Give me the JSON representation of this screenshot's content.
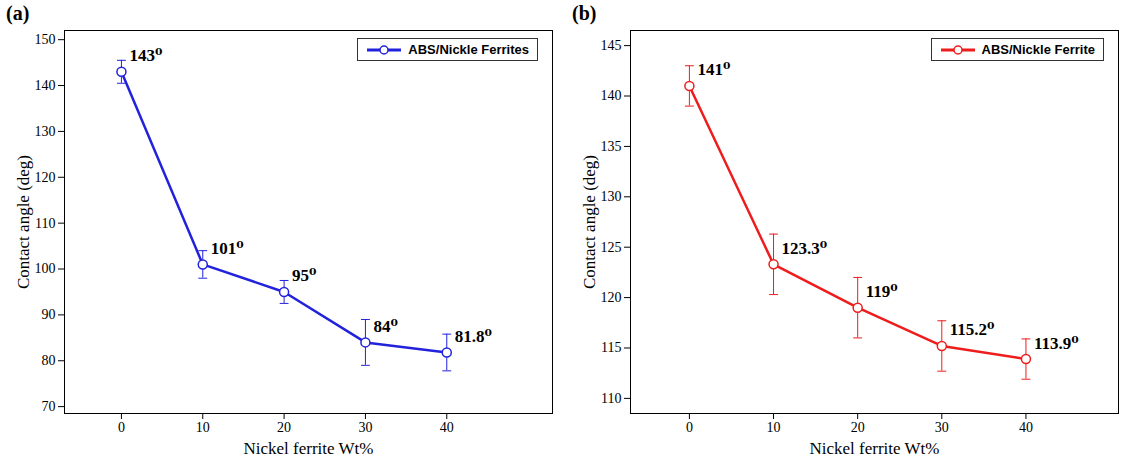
{
  "chart_data": [
    {
      "type": "line",
      "panel": "(a)",
      "x": [
        0,
        10,
        20,
        30,
        40
      ],
      "series": [
        {
          "name": "ABS/Nickle Ferrites",
          "color": "#2222dd",
          "marker": "circle",
          "values": [
            143,
            101,
            95,
            84,
            81.8
          ],
          "errors": [
            2.5,
            3,
            2.5,
            5,
            4
          ],
          "value_labels": [
            "143⁰",
            "101⁰",
            "95⁰",
            "84⁰",
            "81.8⁰"
          ]
        }
      ],
      "x_label": "Nickel ferrite Wt%",
      "y_label": "Contact angle (deg)",
      "xlim": [
        -7,
        53
      ],
      "xticks": [
        0,
        10,
        20,
        30,
        40
      ],
      "ylim": [
        68.5,
        152
      ],
      "yticks": [
        70,
        80,
        90,
        100,
        110,
        120,
        130,
        140,
        150
      ],
      "legend": "top-right",
      "data_labels": true
    },
    {
      "type": "line",
      "panel": "(b)",
      "x": [
        0,
        10,
        20,
        30,
        40
      ],
      "series": [
        {
          "name": "ABS/Nickle Ferrite",
          "color": "#ee1c1c",
          "marker": "circle",
          "values": [
            141,
            123.3,
            119,
            115.2,
            113.9
          ],
          "errors": [
            2,
            3,
            3,
            2.5,
            2
          ],
          "value_labels": [
            "141⁰",
            "123.3⁰",
            "119⁰",
            "115.2⁰",
            "113.9⁰"
          ]
        }
      ],
      "x_label": "Nickel ferrite Wt%",
      "y_label": "Contact angle (deg)",
      "xlim": [
        -7,
        51
      ],
      "xticks": [
        0,
        10,
        20,
        30,
        40
      ],
      "ylim": [
        108.5,
        146.5
      ],
      "yticks": [
        110,
        115,
        120,
        125,
        130,
        135,
        140,
        145
      ],
      "legend": "top-right",
      "data_labels": true
    }
  ]
}
